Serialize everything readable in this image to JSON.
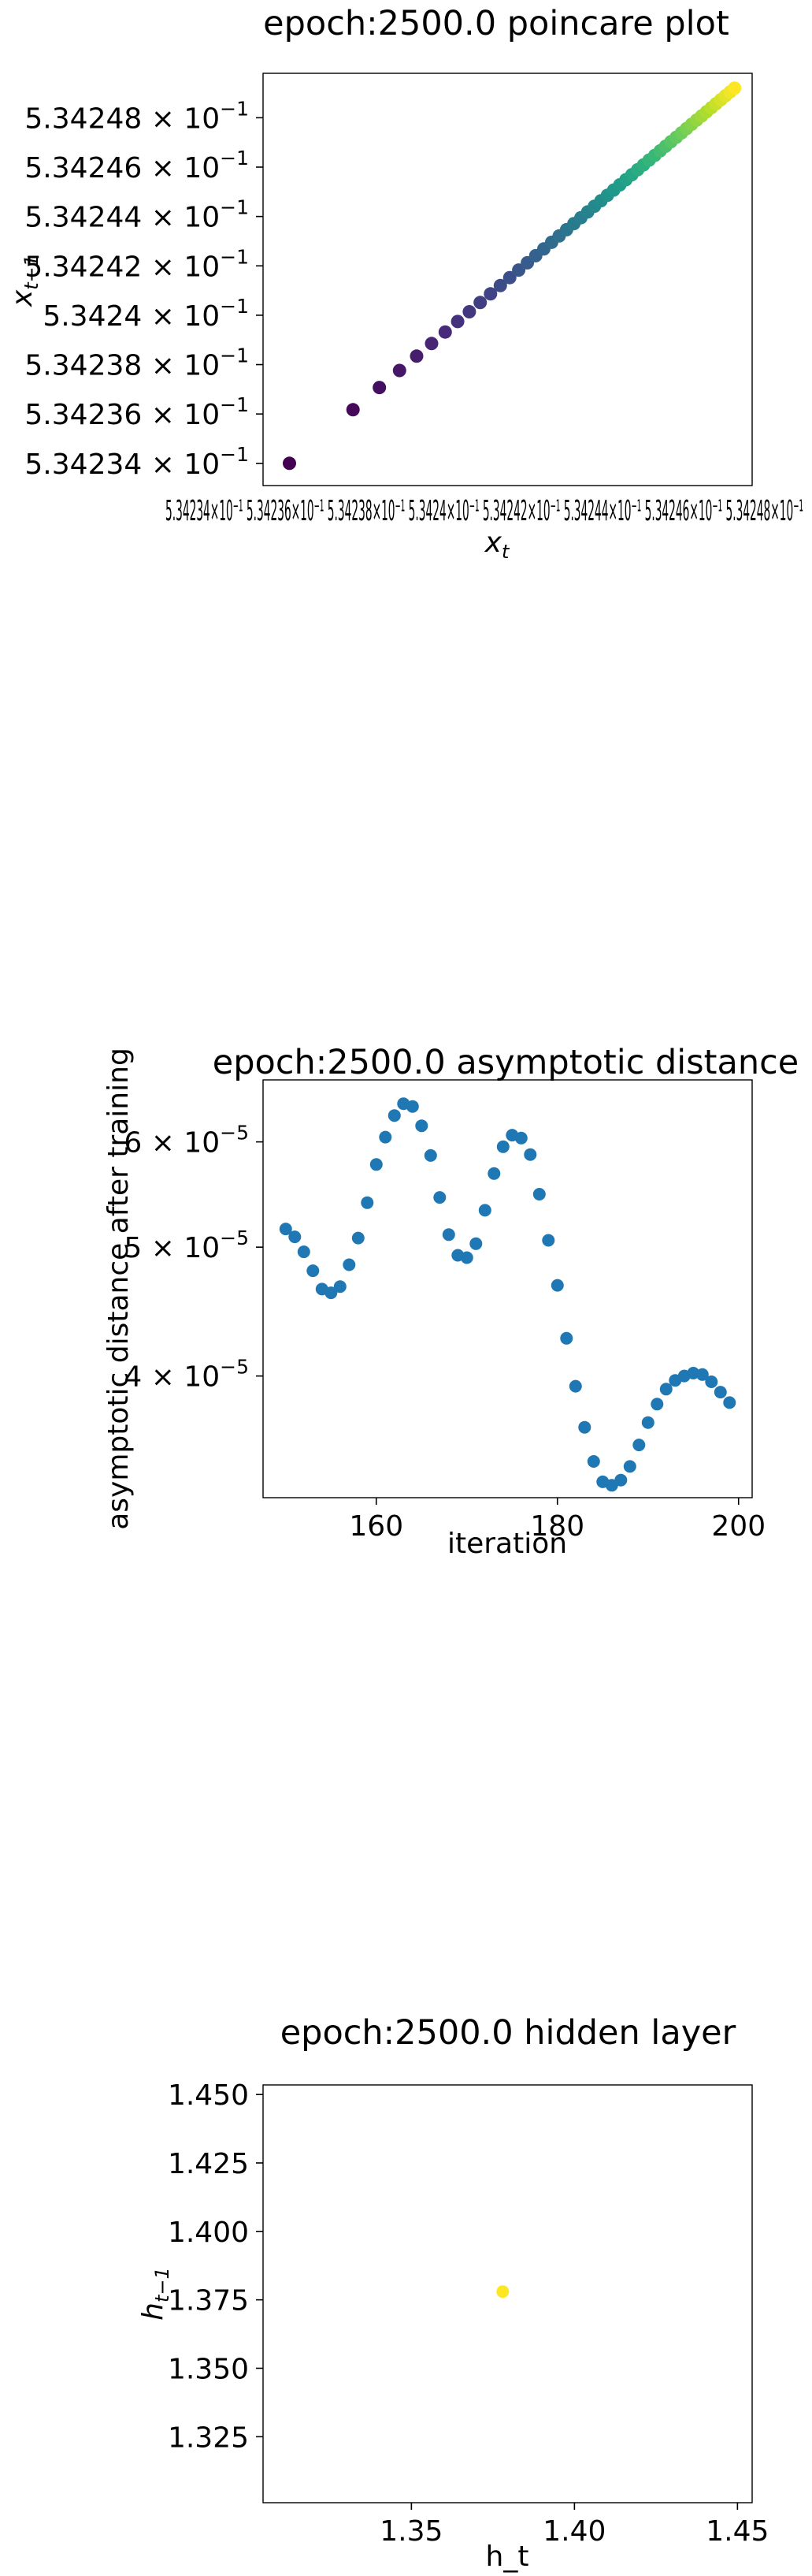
{
  "chart_data": [
    {
      "type": "scatter",
      "title": "epoch:2500.0 poincare plot",
      "xlabel_base": "x",
      "xlabel_sub": "t",
      "ylabel_base": "x",
      "ylabel_sub": "t−1",
      "colormap": "viridis",
      "xlim": [
        0.5342331,
        0.5342498
      ],
      "ylim": [
        0.5342331,
        0.5342498
      ],
      "yticks": [
        0.534234,
        0.534236,
        0.534238,
        0.53424,
        0.534242,
        0.534244,
        0.534246,
        0.534248
      ],
      "ytick_labels": [
        "5.34234",
        "5.34236",
        "5.34238",
        "5.3424",
        "5.34242",
        "5.34244",
        "5.34246",
        "5.34248"
      ],
      "ytick_suffix": "× 10",
      "ytick_exp": "−1",
      "xtick_labels_overlapping": "5.34234×10⁻¹ 5.34236×10⁻¹ 5.34238×10⁻¹ 5.3424×10⁻¹ 5.34242×10⁻¹ 5.34244×10⁻¹ 5.34246×10⁻¹ 5.34248×10⁻¹",
      "x_first": 0.534234,
      "x_last": 0.5342492,
      "n_points": 50,
      "grid": false
    },
    {
      "type": "scatter",
      "title": "epoch:2500.0 asymptotic distance",
      "xlabel": "iteration",
      "ylabel": "asymptotic distance after training",
      "yscale": "log",
      "color": "#1f77b4",
      "xlim": [
        147.5,
        201.5
      ],
      "ylim": [
        3.24e-05,
        6.68e-05
      ],
      "xticks": [
        160,
        180,
        200
      ],
      "xtick_labels": [
        "160",
        "180",
        "200"
      ],
      "yticks": [
        4e-05,
        5e-05,
        6e-05
      ],
      "ytick_mantissa": [
        "4",
        "5",
        "6"
      ],
      "ytick_suffix": "× 10",
      "ytick_exp": "−5",
      "x": [
        150,
        151,
        152,
        153,
        154,
        155,
        156,
        157,
        158,
        159,
        160,
        161,
        162,
        163,
        164,
        165,
        166,
        167,
        168,
        169,
        170,
        171,
        172,
        173,
        174,
        175,
        176,
        177,
        178,
        179,
        180,
        181,
        182,
        183,
        184,
        185,
        186,
        187,
        188,
        189,
        190,
        191,
        192,
        193,
        194,
        195,
        196,
        197,
        198,
        199
      ],
      "y": [
        5.16e-05,
        5.09e-05,
        4.96e-05,
        4.8e-05,
        4.65e-05,
        4.62e-05,
        4.67e-05,
        4.85e-05,
        5.08e-05,
        5.4e-05,
        5.77e-05,
        6.05e-05,
        6.28e-05,
        6.41e-05,
        6.38e-05,
        6.17e-05,
        5.86e-05,
        5.45e-05,
        5.11e-05,
        4.93e-05,
        4.91e-05,
        5.03e-05,
        5.33e-05,
        5.68e-05,
        5.95e-05,
        6.07e-05,
        6.04e-05,
        5.87e-05,
        5.48e-05,
        5.06e-05,
        4.68e-05,
        4.27e-05,
        3.93e-05,
        3.66e-05,
        3.45e-05,
        3.33e-05,
        3.31e-05,
        3.34e-05,
        3.42e-05,
        3.55e-05,
        3.69e-05,
        3.81e-05,
        3.91e-05,
        3.97e-05,
        4e-05,
        4.02e-05,
        4.01e-05,
        3.96e-05,
        3.89e-05,
        3.82e-05
      ],
      "grid": false
    },
    {
      "type": "scatter",
      "title": "epoch:2500.0 hidden layer",
      "xlabel": "h_t",
      "ylabel_base": "h",
      "ylabel_sub": "t−1",
      "color": "#fde725",
      "xlim": [
        1.3045,
        1.4545
      ],
      "ylim": [
        1.3009,
        1.4535
      ],
      "xticks": [
        1.35,
        1.4,
        1.45
      ],
      "xtick_labels": [
        "1.35",
        "1.40",
        "1.45"
      ],
      "yticks": [
        1.325,
        1.35,
        1.375,
        1.4,
        1.425,
        1.45
      ],
      "ytick_labels": [
        "1.325",
        "1.350",
        "1.375",
        "1.400",
        "1.425",
        "1.450"
      ],
      "x": [
        1.378
      ],
      "y": [
        1.378
      ],
      "grid": false
    }
  ]
}
